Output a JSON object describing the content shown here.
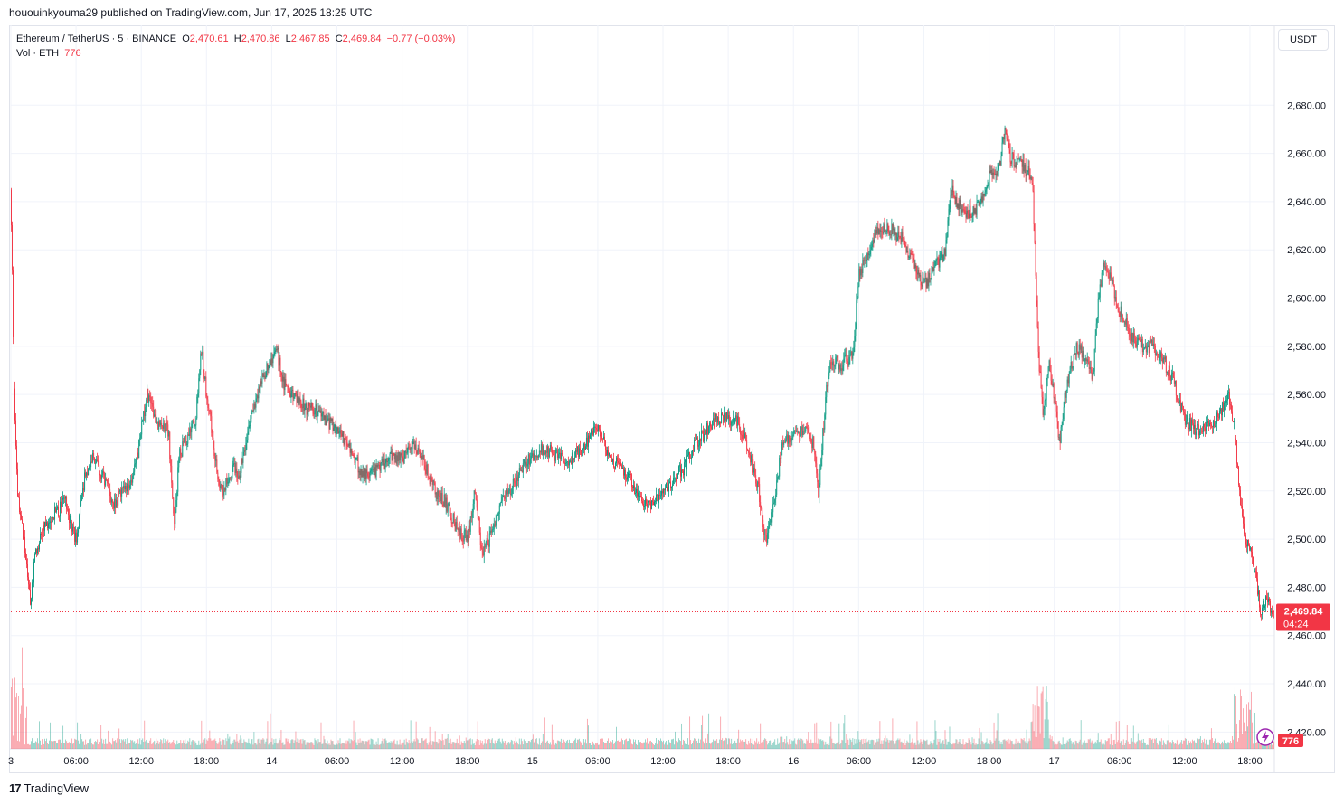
{
  "header": {
    "published_text": "hououinkyouma29 published on TradingView.com, Jun 17, 2025 18:25 UTC"
  },
  "legend": {
    "symbol": "Ethereum / TetherUS · 5 · BINANCE",
    "o_label": "O",
    "o_value": "2,470.61",
    "h_label": "H",
    "h_value": "2,470.86",
    "l_label": "L",
    "l_value": "2,467.85",
    "c_label": "C",
    "c_value": "2,469.84",
    "change": "−0.77 (−0.03%)",
    "vol_label": "Vol · ETH",
    "vol_value": "776"
  },
  "currency_badge": "USDT",
  "footer": {
    "logo_text": "17",
    "brand": "TradingView"
  },
  "colors": {
    "up": "#089981",
    "down": "#f23645",
    "grid": "#f0f3fa",
    "text": "#131722"
  },
  "chart_data": {
    "type": "candlestick",
    "title": "Ethereum / TetherUS · 5 · BINANCE",
    "ylabel": "USDT",
    "ylim": [
      2413.0,
      2703.0
    ],
    "y_ticks": [
      2420,
      2440,
      2460,
      2480,
      2500,
      2520,
      2540,
      2560,
      2580,
      2600,
      2620,
      2640,
      2660,
      2680
    ],
    "y_tick_labels": [
      "2,420.00",
      "2,440.00",
      "2,460.00",
      "2,480.00",
      "2,500.00",
      "2,520.00",
      "2,540.00",
      "2,560.00",
      "2,580.00",
      "2,600.00",
      "2,620.00",
      "2,640.00",
      "2,660.00",
      "2,680.00"
    ],
    "x_ticks": [
      {
        "label": "3",
        "t": 0
      },
      {
        "label": "06:00",
        "t": 6
      },
      {
        "label": "12:00",
        "t": 12
      },
      {
        "label": "18:00",
        "t": 18
      },
      {
        "label": "14",
        "t": 24
      },
      {
        "label": "06:00",
        "t": 30
      },
      {
        "label": "12:00",
        "t": 36
      },
      {
        "label": "18:00",
        "t": 42
      },
      {
        "label": "15",
        "t": 48
      },
      {
        "label": "06:00",
        "t": 54
      },
      {
        "label": "12:00",
        "t": 60
      },
      {
        "label": "18:00",
        "t": 66
      },
      {
        "label": "16",
        "t": 72
      },
      {
        "label": "06:00",
        "t": 78
      },
      {
        "label": "12:00",
        "t": 84
      },
      {
        "label": "18:00",
        "t": 90
      },
      {
        "label": "17",
        "t": 96
      },
      {
        "label": "06:00",
        "t": 102
      },
      {
        "label": "12:00",
        "t": 108
      },
      {
        "label": "18:00",
        "t": 114
      }
    ],
    "t_range": [
      0,
      116.25
    ],
    "price_path": [
      [
        0.0,
        2645
      ],
      [
        0.3,
        2560
      ],
      [
        0.6,
        2520
      ],
      [
        1.2,
        2500
      ],
      [
        1.8,
        2475
      ],
      [
        2.3,
        2495
      ],
      [
        3.0,
        2505
      ],
      [
        4.0,
        2510
      ],
      [
        5.0,
        2515
      ],
      [
        6.0,
        2500
      ],
      [
        6.8,
        2525
      ],
      [
        7.5,
        2535
      ],
      [
        8.5,
        2525
      ],
      [
        9.5,
        2515
      ],
      [
        10.5,
        2520
      ],
      [
        11.5,
        2530
      ],
      [
        12.0,
        2545
      ],
      [
        12.5,
        2560
      ],
      [
        13.5,
        2548
      ],
      [
        14.5,
        2545
      ],
      [
        15.0,
        2505
      ],
      [
        15.5,
        2535
      ],
      [
        16.5,
        2545
      ],
      [
        17.0,
        2550
      ],
      [
        17.5,
        2580
      ],
      [
        18.0,
        2560
      ],
      [
        18.5,
        2545
      ],
      [
        19.0,
        2525
      ],
      [
        19.5,
        2520
      ],
      [
        20.5,
        2530
      ],
      [
        21.0,
        2525
      ],
      [
        22.0,
        2550
      ],
      [
        23.0,
        2565
      ],
      [
        24.0,
        2575
      ],
      [
        24.5,
        2578
      ],
      [
        25.0,
        2565
      ],
      [
        26.0,
        2560
      ],
      [
        27.0,
        2555
      ],
      [
        28.0,
        2553
      ],
      [
        29.0,
        2550
      ],
      [
        30.0,
        2545
      ],
      [
        31.0,
        2540
      ],
      [
        32.0,
        2530
      ],
      [
        33.0,
        2525
      ],
      [
        34.0,
        2530
      ],
      [
        35.0,
        2535
      ],
      [
        36.0,
        2533
      ],
      [
        37.0,
        2540
      ],
      [
        38.0,
        2532
      ],
      [
        39.0,
        2520
      ],
      [
        40.0,
        2515
      ],
      [
        41.0,
        2505
      ],
      [
        42.0,
        2500
      ],
      [
        42.7,
        2520
      ],
      [
        43.3,
        2495
      ],
      [
        44.0,
        2500
      ],
      [
        45.0,
        2515
      ],
      [
        46.0,
        2520
      ],
      [
        47.0,
        2530
      ],
      [
        48.0,
        2535
      ],
      [
        49.0,
        2538
      ],
      [
        50.0,
        2535
      ],
      [
        51.0,
        2532
      ],
      [
        52.0,
        2535
      ],
      [
        53.0,
        2540
      ],
      [
        54.0,
        2548
      ],
      [
        55.0,
        2535
      ],
      [
        56.0,
        2530
      ],
      [
        57.0,
        2525
      ],
      [
        58.0,
        2515
      ],
      [
        59.0,
        2513
      ],
      [
        60.0,
        2520
      ],
      [
        61.0,
        2525
      ],
      [
        62.0,
        2530
      ],
      [
        63.0,
        2540
      ],
      [
        64.0,
        2545
      ],
      [
        65.0,
        2550
      ],
      [
        66.0,
        2550
      ],
      [
        67.0,
        2548
      ],
      [
        68.0,
        2535
      ],
      [
        68.8,
        2520
      ],
      [
        69.4,
        2498
      ],
      [
        70.0,
        2510
      ],
      [
        71.0,
        2540
      ],
      [
        72.0,
        2543
      ],
      [
        73.0,
        2545
      ],
      [
        73.8,
        2540
      ],
      [
        74.3,
        2520
      ],
      [
        75.0,
        2560
      ],
      [
        75.5,
        2575
      ],
      [
        76.5,
        2572
      ],
      [
        77.5,
        2578
      ],
      [
        78.0,
        2610
      ],
      [
        79.0,
        2620
      ],
      [
        80.0,
        2630
      ],
      [
        81.0,
        2628
      ],
      [
        82.0,
        2625
      ],
      [
        83.0,
        2615
      ],
      [
        84.0,
        2605
      ],
      [
        85.0,
        2612
      ],
      [
        86.0,
        2620
      ],
      [
        86.5,
        2645
      ],
      [
        87.0,
        2640
      ],
      [
        88.0,
        2635
      ],
      [
        89.0,
        2638
      ],
      [
        90.0,
        2650
      ],
      [
        91.0,
        2655
      ],
      [
        91.5,
        2672
      ],
      [
        92.0,
        2658
      ],
      [
        93.0,
        2655
      ],
      [
        94.0,
        2650
      ],
      [
        94.5,
        2580
      ],
      [
        95.0,
        2550
      ],
      [
        95.5,
        2575
      ],
      [
        96.0,
        2560
      ],
      [
        96.5,
        2540
      ],
      [
        97.0,
        2560
      ],
      [
        97.5,
        2570
      ],
      [
        98.0,
        2580
      ],
      [
        99.0,
        2575
      ],
      [
        99.5,
        2565
      ],
      [
        100.0,
        2595
      ],
      [
        100.5,
        2615
      ],
      [
        101.0,
        2610
      ],
      [
        102.0,
        2595
      ],
      [
        103.0,
        2585
      ],
      [
        104.0,
        2580
      ],
      [
        105.0,
        2580
      ],
      [
        106.0,
        2575
      ],
      [
        107.0,
        2565
      ],
      [
        108.0,
        2550
      ],
      [
        109.0,
        2545
      ],
      [
        110.0,
        2548
      ],
      [
        111.0,
        2550
      ],
      [
        112.0,
        2560
      ],
      [
        112.6,
        2545
      ],
      [
        113.0,
        2520
      ],
      [
        113.5,
        2500
      ],
      [
        114.0,
        2495
      ],
      [
        114.5,
        2485
      ],
      [
        115.0,
        2470
      ],
      [
        115.5,
        2475
      ],
      [
        116.0,
        2470
      ],
      [
        116.25,
        2469.84
      ]
    ],
    "last_price": 2469.84,
    "last_price_label": "2,469.84",
    "countdown_label": "04:24",
    "volume_last": 776,
    "volume_last_label": "776"
  }
}
